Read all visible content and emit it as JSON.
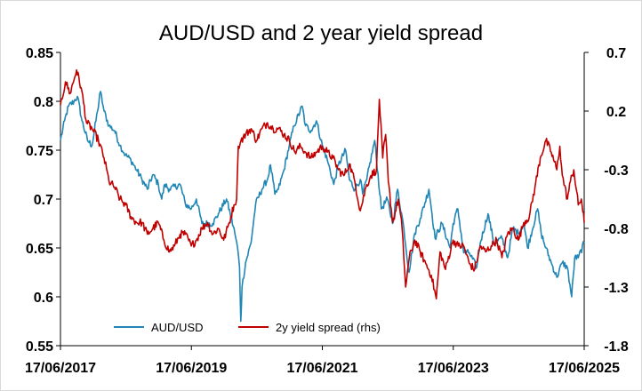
{
  "chart_data": {
    "type": "line",
    "title": "AUD/USD and 2 year yield spread",
    "xlabel": "",
    "ylabel": "",
    "x_ticks": [
      "17/06/2017",
      "17/06/2019",
      "17/06/2021",
      "17/06/2023",
      "17/06/2025"
    ],
    "x_range": [
      "2017-06-17",
      "2025-06-17"
    ],
    "y_left": {
      "ticks": [
        "0.55",
        "0.6",
        "0.65",
        "0.7",
        "0.75",
        "0.8",
        "0.85"
      ],
      "min": 0.55,
      "max": 0.85
    },
    "y_right": {
      "ticks": [
        "-1.8",
        "-1.3",
        "-0.8",
        "-0.3",
        "0.2",
        "0.7"
      ],
      "min": -1.8,
      "max": 0.7
    },
    "grid": false,
    "legend_position": "bottom-inside",
    "series": [
      {
        "name": "AUD/USD",
        "axis": "left",
        "color": "#1f86b5",
        "points": [
          [
            "2017-06-17",
            0.76
          ],
          [
            "2017-07-10",
            0.78
          ],
          [
            "2017-08-01",
            0.795
          ],
          [
            "2017-09-01",
            0.8
          ],
          [
            "2017-09-20",
            0.805
          ],
          [
            "2017-10-15",
            0.78
          ],
          [
            "2017-11-15",
            0.76
          ],
          [
            "2017-12-10",
            0.755
          ],
          [
            "2018-01-10",
            0.79
          ],
          [
            "2018-01-26",
            0.81
          ],
          [
            "2018-02-15",
            0.79
          ],
          [
            "2018-03-15",
            0.775
          ],
          [
            "2018-04-15",
            0.77
          ],
          [
            "2018-05-15",
            0.755
          ],
          [
            "2018-06-15",
            0.745
          ],
          [
            "2018-07-15",
            0.74
          ],
          [
            "2018-08-15",
            0.73
          ],
          [
            "2018-09-15",
            0.72
          ],
          [
            "2018-10-15",
            0.71
          ],
          [
            "2018-11-15",
            0.725
          ],
          [
            "2018-12-15",
            0.715
          ],
          [
            "2019-01-03",
            0.7
          ],
          [
            "2019-01-20",
            0.715
          ],
          [
            "2019-02-15",
            0.71
          ],
          [
            "2019-04-15",
            0.715
          ],
          [
            "2019-05-15",
            0.695
          ],
          [
            "2019-06-17",
            0.69
          ],
          [
            "2019-07-15",
            0.7
          ],
          [
            "2019-08-15",
            0.675
          ],
          [
            "2019-10-15",
            0.675
          ],
          [
            "2019-11-15",
            0.685
          ],
          [
            "2019-12-30",
            0.7
          ],
          [
            "2020-01-20",
            0.685
          ],
          [
            "2020-02-15",
            0.665
          ],
          [
            "2020-03-01",
            0.65
          ],
          [
            "2020-03-12",
            0.63
          ],
          [
            "2020-03-19",
            0.575
          ],
          [
            "2020-03-26",
            0.61
          ],
          [
            "2020-04-15",
            0.635
          ],
          [
            "2020-05-15",
            0.655
          ],
          [
            "2020-06-10",
            0.695
          ],
          [
            "2020-07-15",
            0.71
          ],
          [
            "2020-08-15",
            0.72
          ],
          [
            "2020-09-01",
            0.735
          ],
          [
            "2020-09-25",
            0.705
          ],
          [
            "2020-10-15",
            0.71
          ],
          [
            "2020-11-15",
            0.73
          ],
          [
            "2020-12-15",
            0.755
          ],
          [
            "2021-01-10",
            0.775
          ],
          [
            "2021-02-25",
            0.795
          ],
          [
            "2021-03-15",
            0.775
          ],
          [
            "2021-04-15",
            0.77
          ],
          [
            "2021-05-15",
            0.78
          ],
          [
            "2021-06-17",
            0.755
          ],
          [
            "2021-07-15",
            0.74
          ],
          [
            "2021-08-20",
            0.715
          ],
          [
            "2021-09-15",
            0.735
          ],
          [
            "2021-10-25",
            0.75
          ],
          [
            "2021-11-15",
            0.72
          ],
          [
            "2021-12-15",
            0.71
          ],
          [
            "2022-01-15",
            0.72
          ],
          [
            "2022-01-28",
            0.705
          ],
          [
            "2022-02-20",
            0.72
          ],
          [
            "2022-04-05",
            0.76
          ],
          [
            "2022-05-12",
            0.69
          ],
          [
            "2022-06-15",
            0.7
          ],
          [
            "2022-07-14",
            0.675
          ],
          [
            "2022-08-11",
            0.71
          ],
          [
            "2022-09-15",
            0.67
          ],
          [
            "2022-10-13",
            0.625
          ],
          [
            "2022-11-15",
            0.665
          ],
          [
            "2022-12-15",
            0.68
          ],
          [
            "2023-02-02",
            0.71
          ],
          [
            "2023-03-08",
            0.66
          ],
          [
            "2023-04-15",
            0.675
          ],
          [
            "2023-05-31",
            0.65
          ],
          [
            "2023-06-17",
            0.675
          ],
          [
            "2023-07-13",
            0.69
          ],
          [
            "2023-08-15",
            0.645
          ],
          [
            "2023-09-15",
            0.645
          ],
          [
            "2023-10-26",
            0.63
          ],
          [
            "2023-11-15",
            0.655
          ],
          [
            "2023-12-28",
            0.685
          ],
          [
            "2024-01-31",
            0.655
          ],
          [
            "2024-03-15",
            0.66
          ],
          [
            "2024-04-16",
            0.64
          ],
          [
            "2024-05-15",
            0.67
          ],
          [
            "2024-06-15",
            0.665
          ],
          [
            "2024-07-15",
            0.675
          ],
          [
            "2024-08-05",
            0.65
          ],
          [
            "2024-09-30",
            0.69
          ],
          [
            "2024-10-20",
            0.665
          ],
          [
            "2024-11-15",
            0.65
          ],
          [
            "2024-12-15",
            0.635
          ],
          [
            "2025-01-15",
            0.62
          ],
          [
            "2025-02-15",
            0.635
          ],
          [
            "2025-03-15",
            0.63
          ],
          [
            "2025-04-08",
            0.6
          ],
          [
            "2025-04-25",
            0.64
          ],
          [
            "2025-05-15",
            0.64
          ],
          [
            "2025-06-17",
            0.655
          ]
        ]
      },
      {
        "name": "2y yield spread (rhs)",
        "axis": "right",
        "color": "#c00000",
        "points": [
          [
            "2017-06-17",
            0.25
          ],
          [
            "2017-07-15",
            0.45
          ],
          [
            "2017-08-10",
            0.35
          ],
          [
            "2017-09-15",
            0.55
          ],
          [
            "2017-10-10",
            0.4
          ],
          [
            "2017-11-10",
            0.1
          ],
          [
            "2017-12-10",
            0.05
          ],
          [
            "2018-01-15",
            -0.05
          ],
          [
            "2018-02-15",
            -0.2
          ],
          [
            "2018-03-15",
            -0.4
          ],
          [
            "2018-04-15",
            -0.45
          ],
          [
            "2018-05-15",
            -0.55
          ],
          [
            "2018-06-15",
            -0.6
          ],
          [
            "2018-07-15",
            -0.7
          ],
          [
            "2018-08-15",
            -0.75
          ],
          [
            "2018-09-15",
            -0.75
          ],
          [
            "2018-10-15",
            -0.85
          ],
          [
            "2018-11-15",
            -0.8
          ],
          [
            "2018-12-15",
            -0.75
          ],
          [
            "2019-01-15",
            -0.9
          ],
          [
            "2019-02-15",
            -1.0
          ],
          [
            "2019-03-15",
            -0.95
          ],
          [
            "2019-04-15",
            -0.85
          ],
          [
            "2019-05-15",
            -0.85
          ],
          [
            "2019-06-17",
            -0.95
          ],
          [
            "2019-07-15",
            -0.9
          ],
          [
            "2019-08-15",
            -0.8
          ],
          [
            "2019-09-15",
            -0.75
          ],
          [
            "2019-10-15",
            -0.85
          ],
          [
            "2019-11-15",
            -0.8
          ],
          [
            "2019-12-15",
            -0.9
          ],
          [
            "2020-01-15",
            -0.75
          ],
          [
            "2020-02-10",
            -0.6
          ],
          [
            "2020-02-25",
            -0.55
          ],
          [
            "2020-03-05",
            -0.1
          ],
          [
            "2020-03-20",
            -0.05
          ],
          [
            "2020-04-15",
            0.0
          ],
          [
            "2020-05-15",
            0.05
          ],
          [
            "2020-06-15",
            -0.05
          ],
          [
            "2020-07-15",
            0.05
          ],
          [
            "2020-08-15",
            0.1
          ],
          [
            "2020-09-15",
            0.05
          ],
          [
            "2020-10-15",
            0.05
          ],
          [
            "2020-11-15",
            0.0
          ],
          [
            "2020-12-15",
            -0.05
          ],
          [
            "2021-01-15",
            -0.15
          ],
          [
            "2021-02-15",
            -0.1
          ],
          [
            "2021-03-15",
            -0.15
          ],
          [
            "2021-04-15",
            -0.2
          ],
          [
            "2021-05-15",
            -0.15
          ],
          [
            "2021-06-17",
            -0.1
          ],
          [
            "2021-07-15",
            -0.15
          ],
          [
            "2021-08-15",
            -0.2
          ],
          [
            "2021-09-15",
            -0.3
          ],
          [
            "2021-10-15",
            -0.35
          ],
          [
            "2021-11-15",
            -0.25
          ],
          [
            "2021-12-15",
            -0.4
          ],
          [
            "2022-01-15",
            -0.65
          ],
          [
            "2022-02-15",
            -0.45
          ],
          [
            "2022-03-15",
            -0.35
          ],
          [
            "2022-04-15",
            -0.3
          ],
          [
            "2022-05-01",
            0.3
          ],
          [
            "2022-05-20",
            -0.2
          ],
          [
            "2022-06-05",
            0.0
          ],
          [
            "2022-06-20",
            -0.4
          ],
          [
            "2022-07-15",
            -0.75
          ],
          [
            "2022-08-15",
            -0.55
          ],
          [
            "2022-09-05",
            -0.8
          ],
          [
            "2022-09-25",
            -1.3
          ],
          [
            "2022-10-15",
            -1.05
          ],
          [
            "2022-11-15",
            -0.9
          ],
          [
            "2022-12-15",
            -1.0
          ],
          [
            "2023-01-15",
            -1.1
          ],
          [
            "2023-02-15",
            -1.2
          ],
          [
            "2023-03-15",
            -1.4
          ],
          [
            "2023-04-05",
            -1.0
          ],
          [
            "2023-05-05",
            -1.15
          ],
          [
            "2023-06-17",
            -0.9
          ],
          [
            "2023-07-15",
            -0.95
          ],
          [
            "2023-08-15",
            -0.95
          ],
          [
            "2023-09-15",
            -1.1
          ],
          [
            "2023-10-15",
            -1.15
          ],
          [
            "2023-11-15",
            -0.95
          ],
          [
            "2023-12-15",
            -1.0
          ],
          [
            "2024-01-15",
            -0.95
          ],
          [
            "2024-02-15",
            -0.9
          ],
          [
            "2024-03-15",
            -1.05
          ],
          [
            "2024-04-15",
            -0.85
          ],
          [
            "2024-05-15",
            -0.8
          ],
          [
            "2024-06-15",
            -0.9
          ],
          [
            "2024-07-15",
            -0.75
          ],
          [
            "2024-08-15",
            -0.7
          ],
          [
            "2024-09-15",
            -0.45
          ],
          [
            "2024-10-15",
            -0.2
          ],
          [
            "2024-11-15",
            -0.05
          ],
          [
            "2024-12-15",
            -0.15
          ],
          [
            "2025-01-15",
            -0.3
          ],
          [
            "2025-02-01",
            -0.1
          ],
          [
            "2025-02-15",
            -0.35
          ],
          [
            "2025-03-15",
            -0.55
          ],
          [
            "2025-04-01",
            -0.4
          ],
          [
            "2025-04-20",
            -0.3
          ],
          [
            "2025-05-15",
            -0.6
          ],
          [
            "2025-06-01",
            -0.55
          ],
          [
            "2025-06-17",
            -0.75
          ]
        ]
      }
    ]
  }
}
